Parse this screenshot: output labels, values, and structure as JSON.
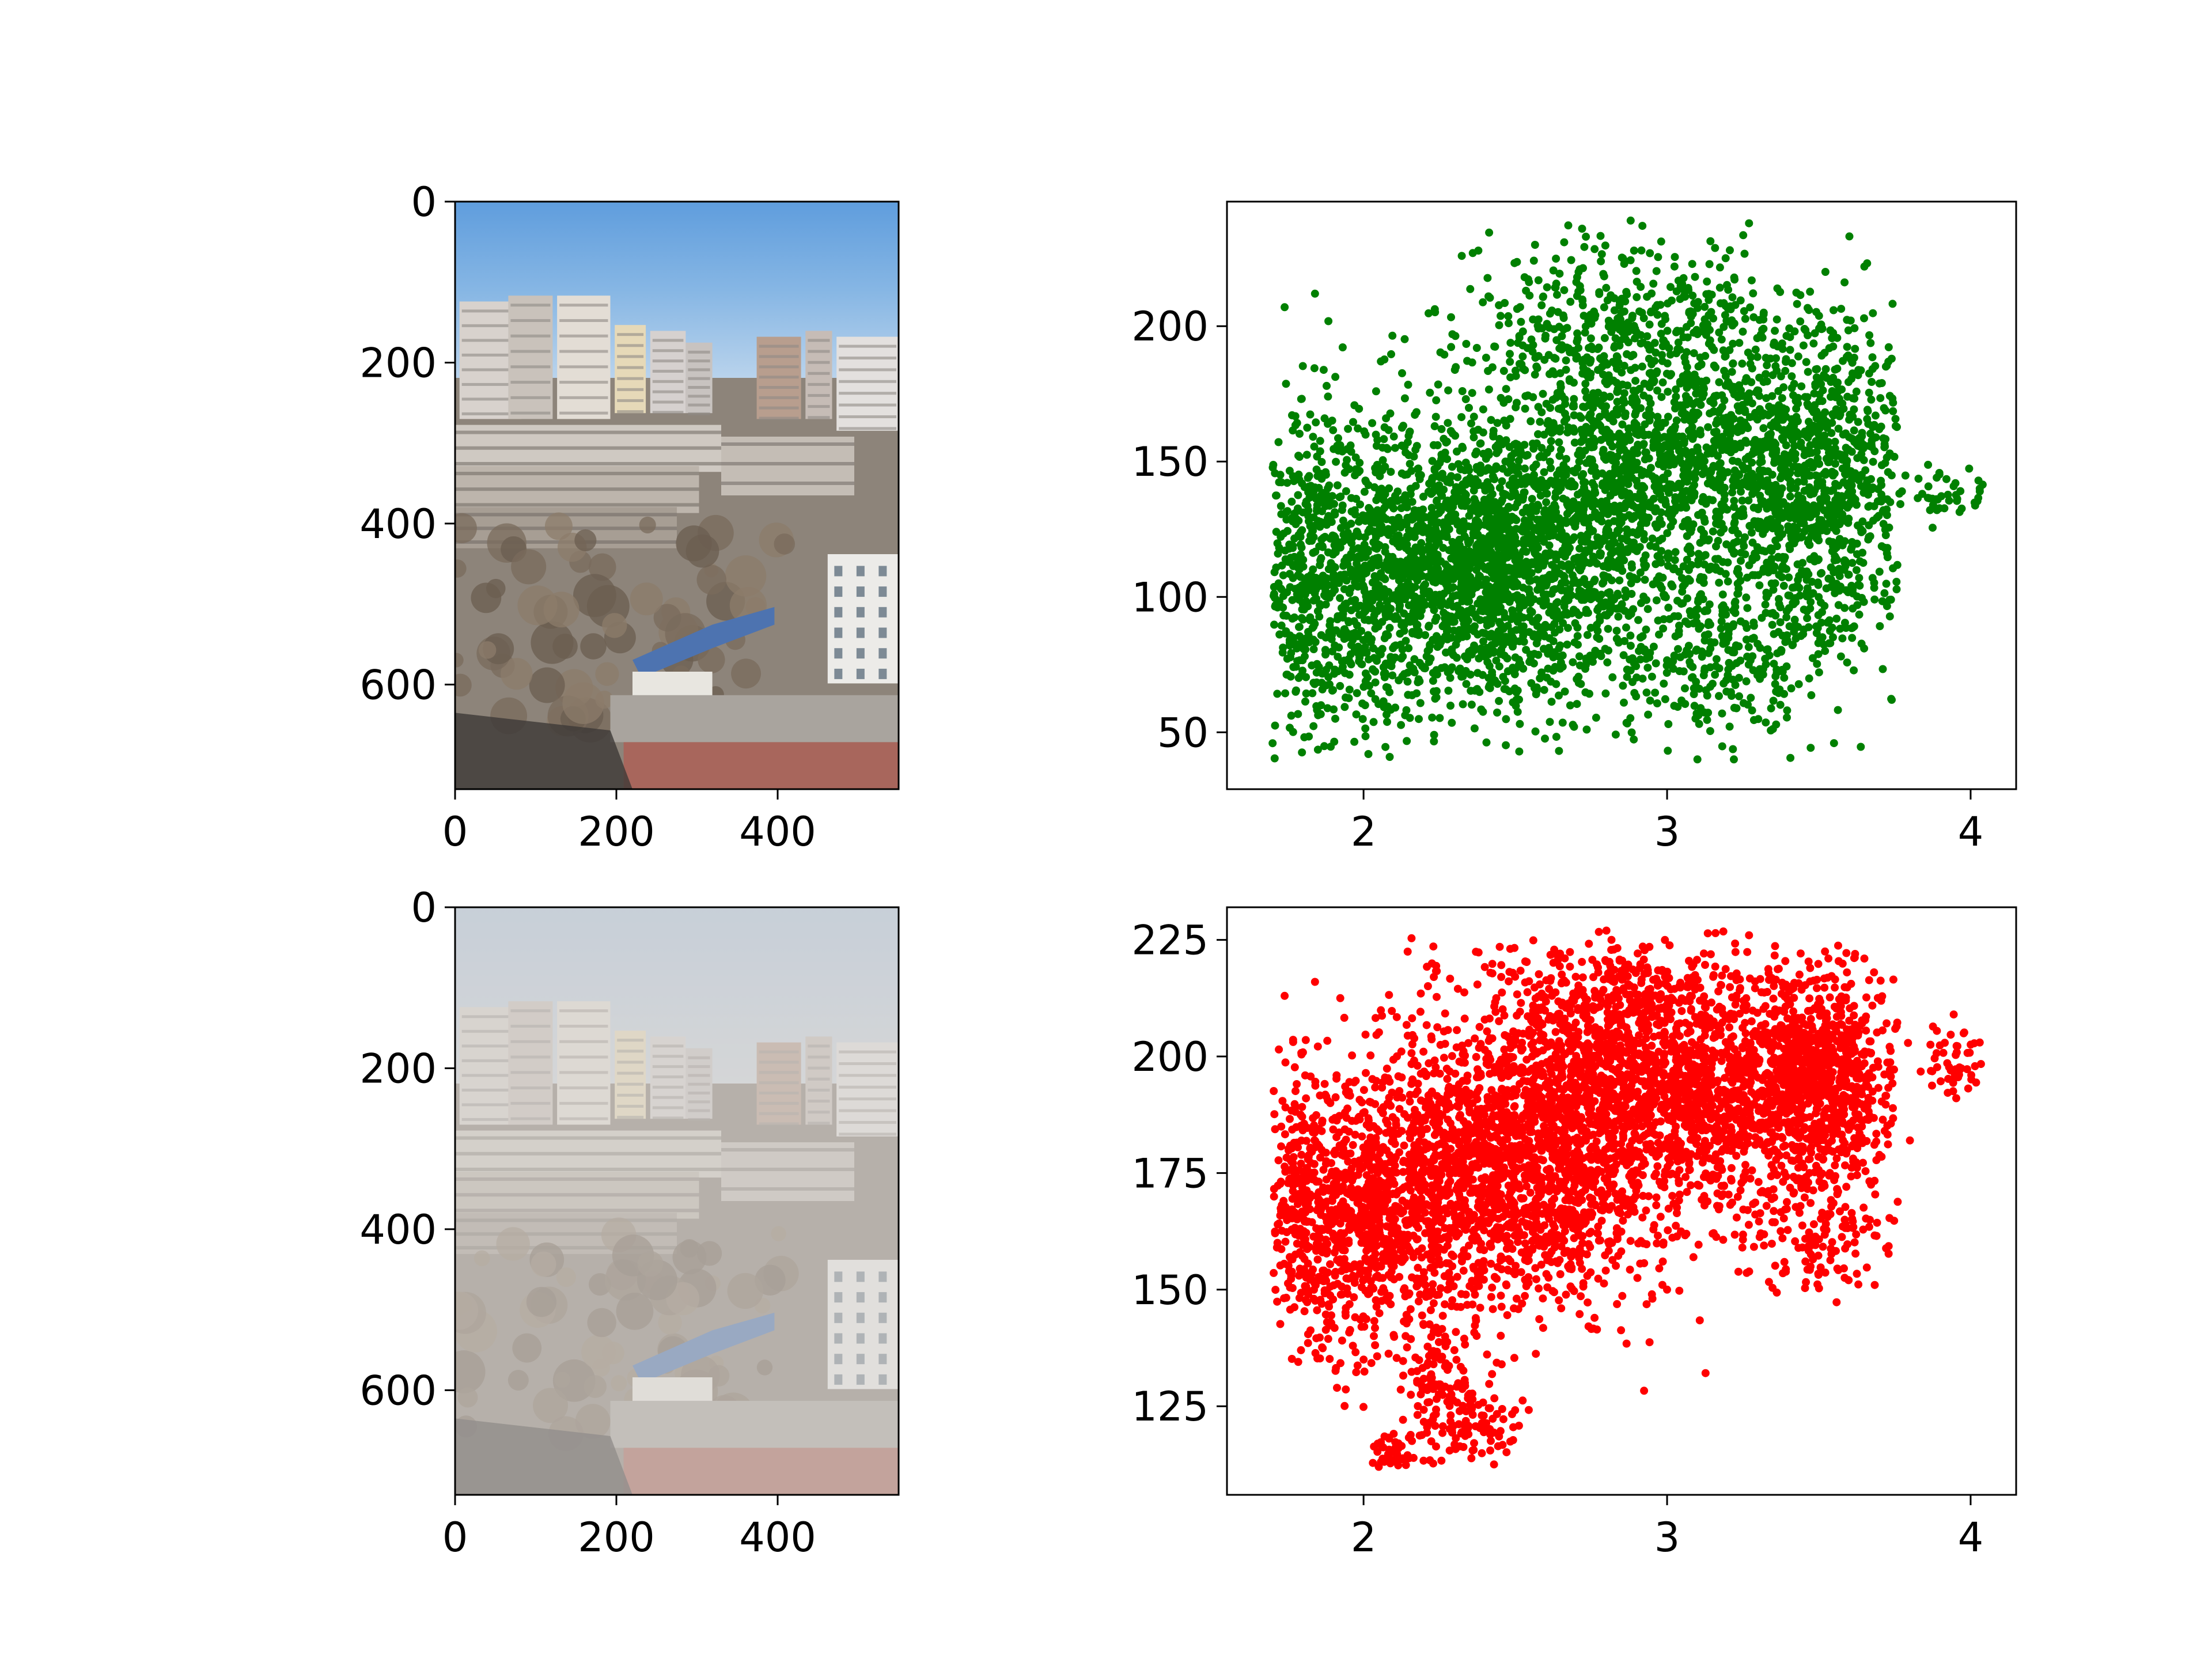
{
  "chart_data": [
    {
      "type": "image",
      "image": "clear-city-photo",
      "x_ticks": [
        0,
        200,
        400
      ],
      "y_ticks": [
        0,
        200,
        400,
        600
      ],
      "xlim": [
        0,
        550
      ],
      "ylim": [
        730,
        0
      ]
    },
    {
      "type": "scatter",
      "color": "#008000",
      "xlim": [
        1.55,
        4.15
      ],
      "ylim": [
        29,
        246
      ],
      "x_ticks": [
        2,
        3,
        4
      ],
      "y_ticks": [
        50,
        100,
        150,
        200
      ],
      "clusters": [
        {
          "cx": 2.45,
          "cy": 112,
          "sx": 0.26,
          "sy": 25,
          "n": 1700
        },
        {
          "cx": 3.0,
          "cy": 150,
          "sx": 0.33,
          "sy": 32,
          "n": 1600
        },
        {
          "cx": 2.0,
          "cy": 105,
          "sx": 0.17,
          "sy": 28,
          "n": 700
        },
        {
          "cx": 3.5,
          "cy": 138,
          "sx": 0.16,
          "sy": 32,
          "n": 800
        },
        {
          "cx": 1.8,
          "cy": 115,
          "sx": 0.07,
          "sy": 35,
          "n": 220
        },
        {
          "cx": 2.85,
          "cy": 200,
          "sx": 0.25,
          "sy": 16,
          "n": 300
        },
        {
          "cx": 3.15,
          "cy": 75,
          "sx": 0.16,
          "sy": 15,
          "n": 200
        },
        {
          "cx": 3.9,
          "cy": 138,
          "sx": 0.08,
          "sy": 5,
          "n": 45
        }
      ],
      "points": [
        [
          1.74,
          207
        ],
        [
          1.84,
          212
        ],
        [
          2.72,
          236
        ],
        [
          2.88,
          239
        ],
        [
          3.27,
          238
        ],
        [
          3.65,
          222
        ],
        [
          3.95,
          142
        ],
        [
          4.03,
          140
        ],
        [
          3.55,
          46
        ],
        [
          3.1,
          40
        ],
        [
          3.22,
          40
        ],
        [
          3.74,
          62
        ],
        [
          1.72,
          105
        ],
        [
          1.86,
          60
        ]
      ]
    },
    {
      "type": "image",
      "image": "hazy-city-photo",
      "x_ticks": [
        0,
        200,
        400
      ],
      "y_ticks": [
        0,
        200,
        400,
        600
      ],
      "xlim": [
        0,
        550
      ],
      "ylim": [
        730,
        0
      ]
    },
    {
      "type": "scatter",
      "color": "#ff0000",
      "xlim": [
        1.55,
        4.15
      ],
      "ylim": [
        106,
        232
      ],
      "x_ticks": [
        2,
        3,
        4
      ],
      "y_ticks": [
        125,
        150,
        175,
        200,
        225
      ],
      "clusters": [
        {
          "cx": 2.45,
          "cy": 175,
          "sx": 0.25,
          "sy": 15,
          "n": 1700
        },
        {
          "cx": 3.0,
          "cy": 192,
          "sx": 0.3,
          "sy": 13,
          "n": 1700
        },
        {
          "cx": 2.0,
          "cy": 165,
          "sx": 0.15,
          "sy": 13,
          "n": 700
        },
        {
          "cx": 3.5,
          "cy": 195,
          "sx": 0.14,
          "sy": 12,
          "n": 800
        },
        {
          "cx": 1.8,
          "cy": 168,
          "sx": 0.06,
          "sy": 16,
          "n": 200
        },
        {
          "cx": 2.8,
          "cy": 212,
          "sx": 0.25,
          "sy": 7,
          "n": 300
        },
        {
          "cx": 2.25,
          "cy": 128,
          "sx": 0.06,
          "sy": 9,
          "n": 130
        },
        {
          "cx": 2.1,
          "cy": 114,
          "sx": 0.05,
          "sy": 3,
          "n": 70
        },
        {
          "cx": 2.4,
          "cy": 122,
          "sx": 0.06,
          "sy": 5,
          "n": 60
        },
        {
          "cx": 3.5,
          "cy": 162,
          "sx": 0.12,
          "sy": 6,
          "n": 120
        },
        {
          "cx": 3.95,
          "cy": 198,
          "sx": 0.06,
          "sy": 4,
          "n": 50
        }
      ],
      "points": [
        [
          1.74,
          213
        ],
        [
          1.84,
          216
        ],
        [
          2.8,
          227
        ],
        [
          3.27,
          226
        ],
        [
          3.65,
          221
        ],
        [
          4.03,
          203
        ],
        [
          3.8,
          182
        ],
        [
          2.05,
          112
        ],
        [
          2.95,
          149
        ],
        [
          3.0,
          150
        ],
        [
          3.15,
          162
        ]
      ]
    }
  ]
}
